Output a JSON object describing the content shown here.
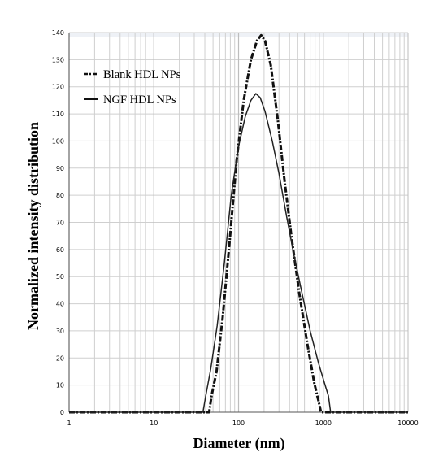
{
  "chart_data": {
    "type": "line",
    "xlabel": "Diameter (nm)",
    "ylabel": "Normalized intensity distribution",
    "x_scale": "log",
    "xlim": [
      1,
      10000
    ],
    "ylim": [
      0,
      140
    ],
    "x_ticks": [
      "1",
      "10",
      "100",
      "1000",
      "10000"
    ],
    "y_ticks": [
      "0",
      "10",
      "20",
      "30",
      "40",
      "50",
      "60",
      "70",
      "80",
      "90",
      "100",
      "110",
      "120",
      "130",
      "140"
    ],
    "grid": true,
    "legend_position": "top-left",
    "series": [
      {
        "name": "Blank HDL NPs",
        "style": "dash-dot",
        "color": "#111111",
        "points": [
          [
            1,
            0
          ],
          [
            45,
            0
          ],
          [
            48,
            6
          ],
          [
            55,
            15
          ],
          [
            65,
            35
          ],
          [
            78,
            62
          ],
          [
            95,
            93
          ],
          [
            115,
            115
          ],
          [
            140,
            130
          ],
          [
            165,
            137
          ],
          [
            185,
            139
          ],
          [
            205,
            137
          ],
          [
            240,
            128
          ],
          [
            290,
            108
          ],
          [
            350,
            85
          ],
          [
            420,
            65
          ],
          [
            520,
            44
          ],
          [
            650,
            25
          ],
          [
            780,
            11
          ],
          [
            880,
            4
          ],
          [
            940,
            0
          ],
          [
            10000,
            0
          ]
        ]
      },
      {
        "name": "NGF HDL NPs",
        "style": "solid",
        "color": "#222222",
        "points": [
          [
            1,
            0
          ],
          [
            38,
            0
          ],
          [
            41,
            6
          ],
          [
            47,
            16
          ],
          [
            56,
            32
          ],
          [
            68,
            55
          ],
          [
            82,
            80
          ],
          [
            100,
            98
          ],
          [
            120,
            109
          ],
          [
            140,
            115
          ],
          [
            160,
            117.5
          ],
          [
            180,
            116
          ],
          [
            205,
            111
          ],
          [
            250,
            100
          ],
          [
            300,
            88
          ],
          [
            370,
            72
          ],
          [
            450,
            58
          ],
          [
            560,
            44
          ],
          [
            700,
            30
          ],
          [
            880,
            18
          ],
          [
            1050,
            10
          ],
          [
            1150,
            6
          ],
          [
            1220,
            0
          ],
          [
            10000,
            0
          ]
        ]
      }
    ]
  }
}
